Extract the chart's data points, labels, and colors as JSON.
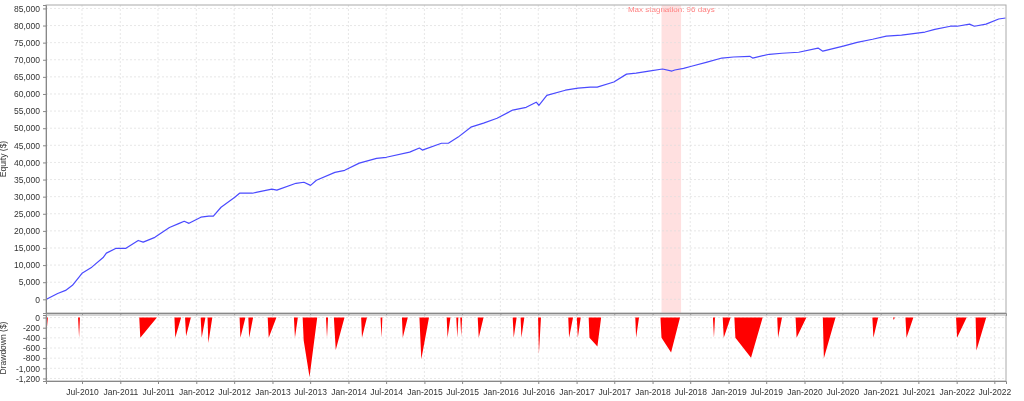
{
  "chart_data": [
    {
      "type": "line",
      "ylabel": "Equity ($)",
      "xlim": [
        "2010-01-09",
        "2022-08-26"
      ],
      "ylim": [
        -4000,
        86000
      ],
      "yticks": [
        0,
        {
          "value": 5000,
          "label": "5,000"
        },
        {
          "value": 10000,
          "label": "10,000"
        },
        {
          "value": 15000,
          "label": "15,000"
        },
        {
          "value": 20000,
          "label": "20,000"
        },
        {
          "value": 25000,
          "label": "25,000"
        },
        {
          "value": 30000,
          "label": "30,000"
        },
        {
          "value": 35000,
          "label": "35,000"
        },
        {
          "value": 40000,
          "label": "40,000"
        },
        {
          "value": 45000,
          "label": "45,000"
        },
        {
          "value": 50000,
          "label": "50,000"
        },
        {
          "value": 55000,
          "label": "55,000"
        },
        {
          "value": 60000,
          "label": "60,000"
        },
        {
          "value": 65000,
          "label": "65,000"
        },
        {
          "value": 70000,
          "label": "70,000"
        },
        {
          "value": 75000,
          "label": "75,000"
        },
        {
          "value": 80000,
          "label": "80,000"
        },
        {
          "value": 85000,
          "label": "85,000"
        }
      ],
      "xticks": [
        {
          "value": "2010-07-01",
          "label": null
        },
        {
          "value": "2011-01-01",
          "label": null
        },
        {
          "value": "2011-07-01",
          "label": null
        },
        {
          "value": "2012-01-01",
          "label": null
        },
        {
          "value": "2012-07-01",
          "label": null
        },
        {
          "value": "2013-01-01",
          "label": null
        },
        {
          "value": "2013-07-01",
          "label": null
        },
        {
          "value": "2014-01-01",
          "label": null
        },
        {
          "value": "2014-07-01",
          "label": null
        },
        {
          "value": "2015-01-01",
          "label": null
        },
        {
          "value": "2015-07-01",
          "label": null
        },
        {
          "value": "2016-01-01",
          "label": null
        },
        {
          "value": "2016-07-01",
          "label": null
        },
        {
          "value": "2017-01-01",
          "label": null
        },
        {
          "value": "2017-07-01",
          "label": null
        },
        {
          "value": "2018-01-01",
          "label": null
        },
        {
          "value": "2018-07-01",
          "label": null
        },
        {
          "value": "2019-01-01",
          "label": null
        },
        {
          "value": "2019-07-01",
          "label": null
        },
        {
          "value": "2020-01-01",
          "label": null
        },
        {
          "value": "2020-07-01",
          "label": null
        },
        {
          "value": "2021-01-01",
          "label": null
        },
        {
          "value": "2021-07-01",
          "label": null
        },
        {
          "value": "2022-01-01",
          "label": null
        },
        {
          "value": "2022-07-01",
          "label": null
        }
      ],
      "tick_labels": "y",
      "grid": true,
      "bands": [
        {
          "axis": "x",
          "from": "2018-02-13",
          "to": "2018-05-18",
          "label": "Max stagnation: 96 days",
          "color": "#ffe0e0"
        }
      ],
      "series": [
        {
          "color": "#4a4aff",
          "x": [
            "2010-01-11",
            "2010-03-06",
            "2010-04-13",
            "2010-05-16",
            "2010-07-01",
            "2010-08-17",
            "2010-10-12",
            "2010-10-26",
            "2010-12-12",
            "2011-01-28",
            "2011-03-28",
            "2011-04-21",
            "2011-06-16",
            "2011-08-25",
            "2011-10-11",
            "2011-11-04",
            "2011-11-27",
            "2012-01-23",
            "2012-03-01",
            "2012-03-23",
            "2012-04-29",
            "2012-07-04",
            "2012-07-27",
            "2012-09-27",
            "2012-10-20",
            "2012-12-29",
            "2013-01-22",
            "2013-04-24",
            "2013-06-01",
            "2013-07-03",
            "2013-07-31",
            "2013-10-28",
            "2013-12-14",
            "2014-02-22",
            "2014-05-16",
            "2014-07-02",
            "2014-10-22",
            "2014-12-08",
            "2014-12-22",
            "2015-03-24",
            "2015-04-26",
            "2015-06-12",
            "2015-08-12",
            "2015-10-12",
            "2015-12-16",
            "2016-02-29",
            "2016-05-04",
            "2016-06-21",
            "2016-07-04",
            "2016-08-11",
            "2016-11-08",
            "2017-01-08",
            "2017-03-08",
            "2017-04-10",
            "2017-06-29",
            "2017-08-29",
            "2017-10-14",
            "2017-12-14",
            "2018-02-18",
            "2018-04-04",
            "2018-04-18",
            "2018-05-30",
            "2018-07-07",
            "2018-09-20",
            "2018-11-30",
            "2019-01-25",
            "2019-04-13",
            "2019-04-27",
            "2019-07-16",
            "2019-09-15",
            "2019-12-04",
            "2020-03-06",
            "2020-03-29",
            "2020-07-05",
            "2020-09-10",
            "2020-11-23",
            "2021-01-28",
            "2021-04-11",
            "2021-08-02",
            "2021-09-18",
            "2021-12-02",
            "2022-01-04",
            "2022-03-04",
            "2022-03-27",
            "2022-05-22",
            "2022-07-22",
            "2022-08-24"
          ],
          "values": [
            0,
            1700,
            2600,
            4100,
            7600,
            9400,
            12300,
            13500,
            14900,
            14900,
            17200,
            16700,
            18100,
            21000,
            22200,
            22800,
            22200,
            24000,
            24300,
            24300,
            26900,
            29800,
            31000,
            31000,
            31300,
            32200,
            31900,
            33900,
            34200,
            33300,
            34800,
            37100,
            37700,
            39800,
            41200,
            41500,
            43000,
            44200,
            43600,
            45600,
            45600,
            47400,
            50300,
            51500,
            52900,
            55300,
            56100,
            57600,
            56700,
            59600,
            61100,
            61700,
            62000,
            62000,
            63500,
            65800,
            66100,
            66700,
            67300,
            66700,
            67000,
            67500,
            68100,
            69300,
            70500,
            70800,
            71000,
            70500,
            71600,
            71900,
            72200,
            73400,
            72500,
            74000,
            75100,
            76000,
            76900,
            77200,
            78100,
            78900,
            79800,
            79800,
            80400,
            79800,
            80400,
            81900,
            82200
          ]
        }
      ]
    },
    {
      "type": "area",
      "ylabel": "Drawdown ($)",
      "xlim": [
        "2010-01-09",
        "2022-08-26"
      ],
      "ylim": [
        -1250,
        50
      ],
      "yticks": [
        0,
        -200,
        -400,
        -600,
        -800,
        {
          "value": -1000,
          "label": "-1,000"
        },
        {
          "value": -1200,
          "label": "-1,200"
        }
      ],
      "xticks": [
        {
          "value": "2010-07-01",
          "label": "Jul-2010"
        },
        {
          "value": "2011-01-01",
          "label": "Jan-2011"
        },
        {
          "value": "2011-07-01",
          "label": "Jul-2011"
        },
        {
          "value": "2012-01-01",
          "label": "Jan-2012"
        },
        {
          "value": "2012-07-01",
          "label": "Jul-2012"
        },
        {
          "value": "2013-01-01",
          "label": "Jan-2013"
        },
        {
          "value": "2013-07-01",
          "label": "Jul-2013"
        },
        {
          "value": "2014-01-01",
          "label": "Jan-2014"
        },
        {
          "value": "2014-07-01",
          "label": "Jul-2014"
        },
        {
          "value": "2015-01-01",
          "label": "Jan-2015"
        },
        {
          "value": "2015-07-01",
          "label": "Jul-2015"
        },
        {
          "value": "2016-01-01",
          "label": "Jan-2016"
        },
        {
          "value": "2016-07-01",
          "label": "Jul-2016"
        },
        {
          "value": "2017-01-01",
          "label": "Jan-2017"
        },
        {
          "value": "2017-07-01",
          "label": "Jul-2017"
        },
        {
          "value": "2018-01-01",
          "label": "Jan-2018"
        },
        {
          "value": "2018-07-01",
          "label": "Jul-2018"
        },
        {
          "value": "2019-01-01",
          "label": "Jan-2019"
        },
        {
          "value": "2019-07-01",
          "label": "Jul-2019"
        },
        {
          "value": "2020-01-01",
          "label": "Jan-2020"
        },
        {
          "value": "2020-07-01",
          "label": "Jul-2020"
        },
        {
          "value": "2021-01-01",
          "label": "Jan-2021"
        },
        {
          "value": "2021-07-01",
          "label": "Jul-2021"
        },
        {
          "value": "2022-01-01",
          "label": "Jan-2022"
        },
        {
          "value": "2022-07-01",
          "label": "Jul-2022"
        }
      ],
      "grid": true,
      "series": [
        {
          "color": "#ff0000",
          "x": [
            "2010-01-09",
            "2010-01-18",
            "2010-06-12",
            "2010-06-17",
            "2010-06-21",
            "2011-04-02",
            "2011-04-07",
            "2011-06-26",
            "2011-09-18",
            "2011-09-22",
            "2011-10-20",
            "2011-11-08",
            "2011-11-13",
            "2011-12-06",
            "2012-01-22",
            "2012-01-27",
            "2012-02-14",
            "2012-02-24",
            "2012-02-28",
            "2012-03-18",
            "2012-07-27",
            "2012-07-31",
            "2012-08-24",
            "2012-09-07",
            "2012-09-11",
            "2012-09-30",
            "2012-12-09",
            "2012-12-14",
            "2013-01-20",
            "2013-04-14",
            "2013-04-19",
            "2013-05-03",
            "2013-05-26",
            "2013-05-31",
            "2013-06-28",
            "2013-08-04",
            "2013-09-15",
            "2013-09-20",
            "2013-09-25",
            "2013-10-23",
            "2013-11-01",
            "2013-12-13",
            "2014-03-03",
            "2014-03-07",
            "2014-03-31",
            "2014-06-04",
            "2014-06-09",
            "2014-06-13",
            "2014-09-15",
            "2014-09-19",
            "2014-10-13",
            "2014-12-08",
            "2014-12-17",
            "2015-01-23",
            "2015-04-18",
            "2015-04-22",
            "2015-05-06",
            "2015-06-03",
            "2015-06-08",
            "2015-06-13",
            "2015-06-22",
            "2015-06-27",
            "2015-07-01",
            "2015-09-14",
            "2015-09-19",
            "2015-10-12",
            "2016-02-29",
            "2016-03-05",
            "2016-03-19",
            "2016-04-07",
            "2016-04-11",
            "2016-04-25",
            "2016-06-30",
            "2016-07-04",
            "2016-07-14",
            "2016-11-22",
            "2016-11-26",
            "2016-12-15",
            "2017-01-02",
            "2017-01-07",
            "2017-01-21",
            "2017-02-28",
            "2017-03-04",
            "2017-04-11",
            "2017-04-29",
            "2017-10-10",
            "2017-10-14",
            "2017-10-28",
            "2018-02-08",
            "2018-02-13",
            "2018-03-31",
            "2018-05-13",
            "2018-10-18",
            "2018-10-23",
            "2018-10-28",
            "2018-12-04",
            "2018-12-09",
            "2019-01-11",
            "2019-01-29",
            "2019-02-03",
            "2019-04-19",
            "2019-06-14",
            "2019-08-23",
            "2019-08-27",
            "2019-09-15",
            "2019-11-19",
            "2019-11-24",
            "2020-01-10",
            "2020-03-29",
            "2020-04-03",
            "2020-05-29",
            "2020-11-22",
            "2020-11-27",
            "2020-12-20",
            "2021-03-01",
            "2021-03-05",
            "2021-03-10",
            "2021-04-30",
            "2021-05-05",
            "2021-06-07",
            "2021-12-29",
            "2022-01-03",
            "2022-02-18",
            "2022-04-02",
            "2022-04-06",
            "2022-05-23",
            "2022-08-24"
          ],
          "values": [
            -400,
            0,
            0,
            -400,
            0,
            0,
            -400,
            0,
            0,
            -400,
            0,
            0,
            -370,
            0,
            0,
            -400,
            0,
            0,
            -500,
            0,
            0,
            -400,
            0,
            0,
            -400,
            0,
            0,
            -400,
            0,
            0,
            -400,
            0,
            0,
            -450,
            -1170,
            0,
            0,
            -400,
            0,
            0,
            -640,
            0,
            0,
            -400,
            0,
            0,
            -400,
            0,
            0,
            -400,
            0,
            0,
            -820,
            0,
            0,
            -400,
            0,
            0,
            -400,
            0,
            0,
            -370,
            0,
            0,
            -400,
            0,
            0,
            -400,
            0,
            0,
            -400,
            0,
            0,
            -720,
            0,
            0,
            -400,
            0,
            0,
            -400,
            0,
            0,
            -400,
            -570,
            0,
            0,
            -400,
            0,
            0,
            -400,
            -690,
            0,
            0,
            -400,
            0,
            0,
            -400,
            0,
            0,
            -400,
            -790,
            0,
            0,
            -400,
            0,
            0,
            -400,
            0,
            0,
            -800,
            0,
            0,
            -400,
            0,
            0,
            -50,
            0,
            0,
            -400,
            0,
            0,
            -400,
            0,
            0,
            -650,
            0,
            0
          ]
        }
      ]
    }
  ]
}
